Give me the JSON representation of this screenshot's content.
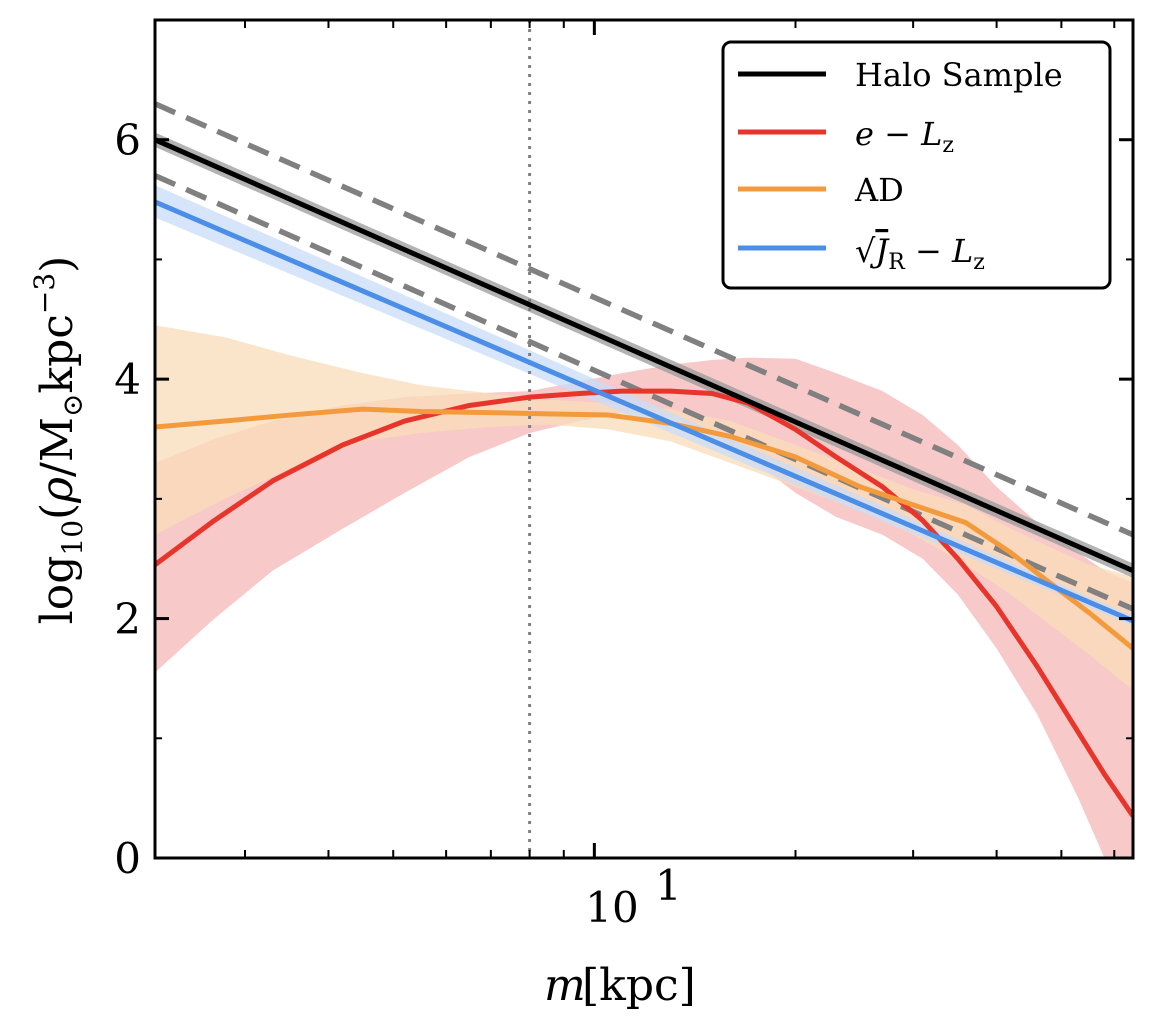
{
  "chart_data": {
    "type": "line",
    "title": "",
    "xlabel": "m [kpc]",
    "ylabel": "log10(ρ/M⊙kpc^-3)",
    "xscale": "log",
    "xlim": [
      2.2,
      64
    ],
    "ylim": [
      0,
      7
    ],
    "grid": false,
    "legend_position": "top-right",
    "x_tick_labels": [
      {
        "value": 10,
        "label": "10^1"
      }
    ],
    "y_ticks": [
      0,
      2,
      4,
      6
    ],
    "vertical_reference_line": {
      "x": 8.0,
      "style": "dotted",
      "color": "#808080"
    },
    "reference_lines": [
      {
        "style": "dashed",
        "color": "#808080",
        "points": [
          [
            2.2,
            6.3
          ],
          [
            64,
            2.7
          ]
        ]
      },
      {
        "style": "dashed",
        "color": "#808080",
        "points": [
          [
            2.2,
            5.7
          ],
          [
            64,
            2.08
          ]
        ]
      }
    ],
    "series": [
      {
        "name": "Halo Sample",
        "color": "#000000",
        "x": [
          2.2,
          64
        ],
        "y": [
          6.0,
          2.4
        ],
        "band_lower": [
          5.94,
          2.34
        ],
        "band_upper": [
          6.06,
          2.46
        ],
        "band_color": "#999999"
      },
      {
        "name": "e − Lz",
        "color": "#e8352c",
        "x": [
          2.2,
          2.7,
          3.3,
          4.2,
          5.2,
          6.5,
          8.0,
          9.5,
          11,
          13,
          15,
          17,
          20,
          23,
          27,
          31,
          35,
          40,
          46,
          53,
          58,
          64
        ],
        "y": [
          2.45,
          2.82,
          3.15,
          3.45,
          3.65,
          3.78,
          3.85,
          3.88,
          3.9,
          3.9,
          3.88,
          3.8,
          3.58,
          3.35,
          3.1,
          2.82,
          2.5,
          2.1,
          1.6,
          1.05,
          0.7,
          0.35
        ],
        "band_lower": [
          1.55,
          2.0,
          2.4,
          2.75,
          3.05,
          3.35,
          3.55,
          3.65,
          3.72,
          3.68,
          3.55,
          3.35,
          3.05,
          2.85,
          2.7,
          2.5,
          2.2,
          1.75,
          1.2,
          0.5,
          0.0,
          0.0
        ],
        "band_upper": [
          3.3,
          3.5,
          3.65,
          3.78,
          3.85,
          3.88,
          3.9,
          3.98,
          4.05,
          4.12,
          4.16,
          4.18,
          4.17,
          4.05,
          3.9,
          3.7,
          3.45,
          3.1,
          2.8,
          2.55,
          2.4,
          2.3
        ],
        "band_color": "#f4b7b7"
      },
      {
        "name": "AD",
        "color": "#f39a3d",
        "x": [
          2.2,
          2.8,
          3.5,
          4.5,
          5.5,
          7,
          8.5,
          10.5,
          13,
          16,
          20,
          25,
          30,
          36,
          42,
          48,
          55,
          64
        ],
        "y": [
          3.6,
          3.65,
          3.7,
          3.75,
          3.73,
          3.72,
          3.71,
          3.7,
          3.63,
          3.52,
          3.35,
          3.1,
          2.95,
          2.8,
          2.55,
          2.3,
          2.05,
          1.75
        ],
        "band_lower": [
          2.7,
          3.0,
          3.25,
          3.48,
          3.55,
          3.6,
          3.62,
          3.58,
          3.48,
          3.3,
          3.1,
          2.9,
          2.7,
          2.45,
          2.2,
          1.95,
          1.7,
          1.4
        ],
        "band_upper": [
          4.45,
          4.35,
          4.2,
          4.05,
          3.95,
          3.88,
          3.83,
          3.8,
          3.75,
          3.65,
          3.45,
          3.25,
          3.08,
          2.95,
          2.75,
          2.6,
          2.45,
          2.35
        ],
        "band_color": "#f9dcb8"
      },
      {
        "name": "√J_R − Lz",
        "color": "#4b8ee8",
        "x": [
          2.2,
          64
        ],
        "y": [
          5.48,
          1.98
        ],
        "band_lower": [
          5.35,
          1.94
        ],
        "band_upper": [
          5.62,
          2.02
        ],
        "band_color": "#c8dcf8"
      }
    ]
  }
}
